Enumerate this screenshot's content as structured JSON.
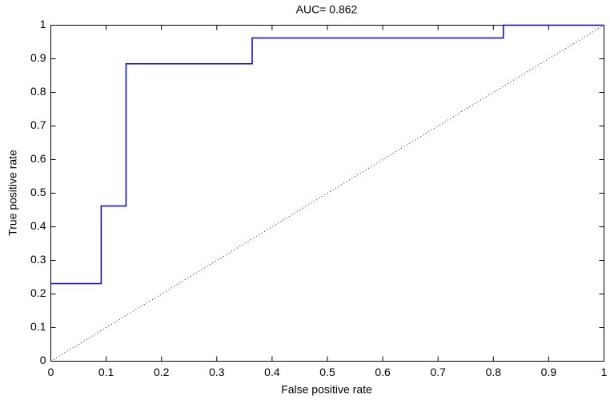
{
  "chart_data": {
    "type": "line",
    "title": "AUC= 0.862",
    "xlabel": "False positive rate",
    "ylabel": "True positive rate",
    "series": [
      {
        "color": "#0000ff",
        "linestyle": "solid",
        "x": [
          0,
          0.091,
          0.091,
          0.136,
          0.136,
          0.364,
          0.364,
          0.818,
          0.818,
          1
        ],
        "values": [
          0.231,
          0.231,
          0.462,
          0.462,
          0.885,
          0.885,
          0.962,
          0.962,
          1,
          1
        ]
      },
      {
        "color": "#0000ff",
        "linestyle": "dotted",
        "x": [
          0,
          1
        ],
        "values": [
          0,
          1
        ]
      }
    ],
    "xlim": [
      0,
      1
    ],
    "ylim": [
      0,
      1
    ],
    "xticks": [
      0,
      0.1,
      0.2,
      0.3,
      0.4,
      0.5,
      0.6,
      0.7,
      0.8,
      0.9,
      1
    ],
    "yticks": [
      0,
      0.1,
      0.2,
      0.3,
      0.4,
      0.5,
      0.6,
      0.7,
      0.8,
      0.9,
      1
    ],
    "grid": false
  }
}
